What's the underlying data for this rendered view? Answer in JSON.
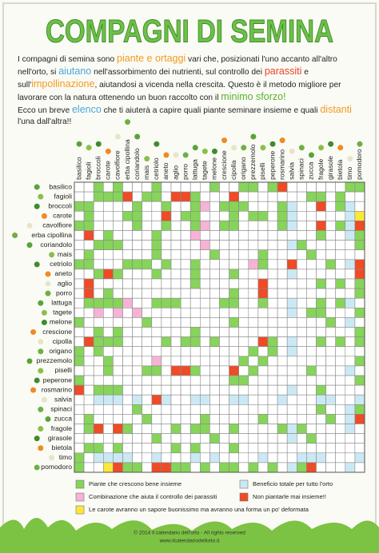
{
  "header": {
    "title": "COMPAGNI DI SEMINA"
  },
  "intro": [
    [
      {
        "text": "I compagni di semina sono "
      },
      {
        "text": "piante e ortaggi",
        "color": "#f39a1e"
      },
      {
        "text": " vari che, posizionati l'uno accanto all'altro nell'orto, si "
      },
      {
        "text": "aiutano",
        "color": "#4aa8d8"
      },
      {
        "text": " nell'assorbimento dei nutrienti, sul controllo dei "
      },
      {
        "text": "parassiti",
        "color": "#e8432a"
      },
      {
        "text": " e sull'"
      },
      {
        "text": "impollinazione",
        "color": "#f39a1e"
      },
      {
        "text": ", aiutandosi a vicenda nella crescita. Questo è il metodo migliore per lavorare con la natura ottenendo un buon raccolto con il "
      },
      {
        "text": "minimo sforzo!",
        "color": "#5ab031"
      }
    ],
    [
      {
        "text": "Ecco un breve "
      },
      {
        "text": "elenco",
        "color": "#4aa8d8"
      },
      {
        "text": " che ti aiuterà a capire quali piante seminare insieme e quali "
      },
      {
        "text": "distanti",
        "color": "#f39a1e"
      },
      {
        "text": " l'una dall'altra!!"
      }
    ]
  ],
  "plants": [
    "basilico",
    "fagioli",
    "broccoli",
    "carote",
    "cavolfiore",
    "erba cipollina",
    "coriandolo",
    "mais",
    "cetriolo",
    "aneto",
    "aglio",
    "porro",
    "lattuga",
    "tagete",
    "melone",
    "crescione",
    "cipolla",
    "origano",
    "prezzemolo",
    "piselli",
    "peperone",
    "rosmarino",
    "salvia",
    "spinaci",
    "zucca",
    "fragole",
    "girasole",
    "bietola",
    "timo",
    "pomodoro"
  ],
  "legend": [
    {
      "label": "Piante che crescono bene insieme",
      "color": "#86d45a"
    },
    {
      "label": "Beneficio totale per tutto l'orto",
      "color": "#cbe9f5"
    },
    {
      "label": "Combinazione che aiuta il controllo dei parassiti",
      "color": "#f6b3d6"
    },
    {
      "label": "Non piantarle mai insieme!!",
      "color": "#ee4b26"
    },
    {
      "label": "Le carote avranno un sapore buonissimo ma avranno una forma un po' deformata",
      "color": "#fbe83a"
    }
  ],
  "pairs": [
    [
      0,
      2,
      0
    ],
    [
      0,
      4,
      0
    ],
    [
      0,
      8,
      0
    ],
    [
      0,
      14,
      0
    ],
    [
      0,
      17,
      0
    ],
    [
      0,
      18,
      0
    ],
    [
      0,
      20,
      0
    ],
    [
      0,
      29,
      0
    ],
    [
      0,
      21,
      3
    ],
    [
      0,
      28,
      0
    ],
    [
      1,
      2,
      0
    ],
    [
      1,
      3,
      0
    ],
    [
      1,
      4,
      0
    ],
    [
      1,
      7,
      0
    ],
    [
      1,
      8,
      0
    ],
    [
      1,
      12,
      0
    ],
    [
      1,
      24,
      0
    ],
    [
      1,
      25,
      0
    ],
    [
      1,
      27,
      0
    ],
    [
      1,
      5,
      3
    ],
    [
      1,
      10,
      3
    ],
    [
      1,
      11,
      3
    ],
    [
      1,
      16,
      3
    ],
    [
      2,
      6,
      0
    ],
    [
      2,
      9,
      0
    ],
    [
      2,
      12,
      0
    ],
    [
      2,
      15,
      0
    ],
    [
      2,
      16,
      0
    ],
    [
      2,
      17,
      0
    ],
    [
      2,
      21,
      0
    ],
    [
      2,
      27,
      0
    ],
    [
      2,
      25,
      3
    ],
    [
      2,
      13,
      2
    ],
    [
      3,
      5,
      0
    ],
    [
      3,
      6,
      0
    ],
    [
      3,
      11,
      0
    ],
    [
      3,
      12,
      0
    ],
    [
      3,
      16,
      0
    ],
    [
      3,
      18,
      0
    ],
    [
      3,
      19,
      0
    ],
    [
      3,
      21,
      0
    ],
    [
      3,
      9,
      3
    ],
    [
      3,
      29,
      4
    ],
    [
      4,
      6,
      0
    ],
    [
      4,
      9,
      0
    ],
    [
      4,
      12,
      0
    ],
    [
      4,
      15,
      0
    ],
    [
      4,
      16,
      0
    ],
    [
      4,
      21,
      0
    ],
    [
      4,
      27,
      0
    ],
    [
      4,
      25,
      3
    ],
    [
      4,
      29,
      3
    ],
    [
      4,
      13,
      2
    ],
    [
      5,
      8,
      0
    ],
    [
      5,
      25,
      0
    ],
    [
      5,
      29,
      0
    ],
    [
      5,
      12,
      2
    ],
    [
      6,
      8,
      0
    ],
    [
      6,
      23,
      0
    ],
    [
      6,
      29,
      0
    ],
    [
      6,
      13,
      2
    ],
    [
      7,
      8,
      0
    ],
    [
      7,
      14,
      0
    ],
    [
      7,
      19,
      0
    ],
    [
      7,
      24,
      0
    ],
    [
      8,
      9,
      0
    ],
    [
      8,
      12,
      0
    ],
    [
      8,
      19,
      0
    ],
    [
      8,
      26,
      0
    ],
    [
      8,
      29,
      3
    ],
    [
      8,
      18,
      2
    ],
    [
      8,
      22,
      3
    ],
    [
      9,
      12,
      0
    ],
    [
      9,
      16,
      0
    ],
    [
      9,
      29,
      3
    ],
    [
      10,
      12,
      0
    ],
    [
      10,
      25,
      0
    ],
    [
      10,
      27,
      0
    ],
    [
      10,
      29,
      0
    ],
    [
      10,
      19,
      3
    ],
    [
      11,
      16,
      0
    ],
    [
      11,
      29,
      0
    ],
    [
      11,
      19,
      3
    ],
    [
      12,
      15,
      0
    ],
    [
      12,
      16,
      0
    ],
    [
      12,
      19,
      0
    ],
    [
      12,
      25,
      0
    ],
    [
      12,
      27,
      0
    ],
    [
      13,
      24,
      0
    ],
    [
      13,
      25,
      0
    ],
    [
      13,
      29,
      0
    ],
    [
      14,
      16,
      0
    ],
    [
      14,
      26,
      0
    ],
    [
      15,
      29,
      0
    ],
    [
      16,
      20,
      0
    ],
    [
      16,
      25,
      0
    ],
    [
      16,
      27,
      0
    ],
    [
      16,
      29,
      0
    ],
    [
      16,
      19,
      3
    ],
    [
      17,
      18,
      0
    ],
    [
      17,
      20,
      0
    ],
    [
      18,
      19,
      0
    ],
    [
      18,
      29,
      0
    ],
    [
      19,
      24,
      0
    ],
    [
      20,
      29,
      0
    ],
    [
      21,
      25,
      0
    ],
    [
      23,
      25,
      0
    ],
    [
      23,
      29,
      0
    ],
    [
      24,
      26,
      0
    ],
    [
      24,
      29,
      3
    ],
    [
      2,
      22,
      1
    ],
    [
      3,
      22,
      1
    ],
    [
      4,
      22,
      1
    ],
    [
      6,
      22,
      1
    ],
    [
      9,
      22,
      1
    ],
    [
      12,
      22,
      1
    ],
    [
      13,
      22,
      1
    ],
    [
      16,
      22,
      1
    ],
    [
      17,
      22,
      1
    ],
    [
      21,
      22,
      1
    ],
    [
      22,
      25,
      1
    ],
    [
      22,
      26,
      1
    ],
    [
      22,
      29,
      1
    ],
    [
      2,
      28,
      1
    ],
    [
      3,
      28,
      1
    ],
    [
      4,
      28,
      1
    ],
    [
      5,
      28,
      1
    ],
    [
      8,
      28,
      1
    ],
    [
      12,
      28,
      1
    ],
    [
      14,
      28,
      1
    ],
    [
      19,
      28,
      1
    ],
    [
      23,
      28,
      1
    ],
    [
      24,
      28,
      1
    ],
    [
      25,
      28,
      1
    ],
    [
      28,
      29,
      1
    ]
  ],
  "footer": {
    "copyright": "© 2014 Il calendario dell'orto - All rights reserved",
    "website": "www.ilcalendariodellorto.it"
  }
}
